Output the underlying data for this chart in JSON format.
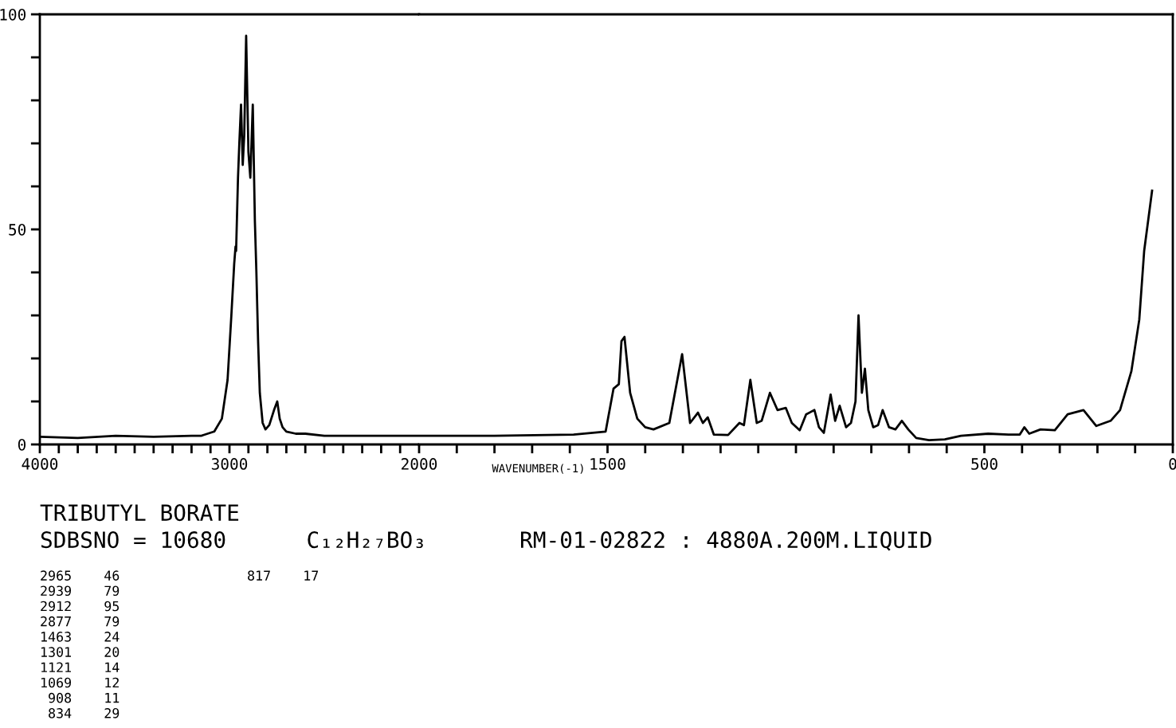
{
  "chart_data": [
    {
      "type": "line",
      "title": "TRIBUTYL BORATE",
      "subtitle": "SDBSNO = 10680      C₁₂H₂₇BO₃       RM-01-02822 : 4880A.200M.LIQUID",
      "series": [
        {
          "color": "#000000",
          "x": [
            4000,
            3800,
            3600,
            3400,
            3200,
            3150,
            3080,
            3040,
            3010,
            2990,
            2975,
            2968,
            2965,
            2955,
            2948,
            2939,
            2930,
            2922,
            2912,
            2900,
            2890,
            2877,
            2866,
            2858,
            2849,
            2840,
            2825,
            2810,
            2790,
            2765,
            2748,
            2735,
            2720,
            2700,
            2650,
            2600,
            2500,
            2300,
            2100,
            2000
          ],
          "values": [
            1.8,
            1.5,
            2,
            1.8,
            2,
            2,
            3,
            6,
            15,
            30,
            42,
            46,
            45,
            62,
            70,
            79,
            65,
            72,
            95,
            68,
            62,
            79,
            52,
            40,
            24,
            12,
            5,
            3.5,
            4.5,
            8,
            10,
            6,
            4,
            3,
            2.5,
            2.5,
            2,
            2,
            2,
            2
          ]
        }
      ],
      "xlim": [
        4000,
        2000
      ],
      "xticks": [
        4000,
        {
          "value": 3900,
          "label": null
        },
        {
          "value": 3800,
          "label": null
        },
        {
          "value": 3700,
          "label": null
        },
        {
          "value": 3600,
          "label": null
        },
        {
          "value": 3500,
          "label": null
        },
        {
          "value": 3400,
          "label": null
        },
        {
          "value": 3300,
          "label": null
        },
        {
          "value": 3200,
          "label": null
        },
        {
          "value": 3100,
          "label": null
        },
        3000,
        {
          "value": 2900,
          "label": null
        },
        {
          "value": 2800,
          "label": null
        },
        {
          "value": 2700,
          "label": null
        },
        {
          "value": 2600,
          "label": null
        },
        {
          "value": 2500,
          "label": null
        },
        {
          "value": 2400,
          "label": null
        },
        {
          "value": 2300,
          "label": null
        },
        {
          "value": 2200,
          "label": null
        },
        {
          "value": 2100,
          "label": null
        }
      ],
      "ylim": [
        0,
        100
      ],
      "yticks": [
        0,
        {
          "value": 10,
          "label": null
        },
        {
          "value": 20,
          "label": null
        },
        {
          "value": 30,
          "label": null
        },
        {
          "value": 40,
          "label": null
        },
        50,
        {
          "value": 60,
          "label": null
        },
        {
          "value": 70,
          "label": null
        },
        {
          "value": 80,
          "label": null
        },
        {
          "value": 90,
          "label": null
        },
        100
      ],
      "annotations": [
        "2965    46",
        "2939    79",
        "2912    95",
        "2877    79",
        "1463    24",
        "1301    20",
        "1121    14",
        "1069    12",
        " 908    11",
        " 834    29",
        " 817    17"
      ]
    },
    {
      "type": "line",
      "xlabel": "WAVENUMBER(-1)",
      "series": [
        {
          "color": "#000000",
          "x": [
            2000,
            1800,
            1590,
            1505,
            1484,
            1470,
            1463,
            1455,
            1440,
            1421,
            1400,
            1378,
            1336,
            1302,
            1281,
            1260,
            1247,
            1234,
            1218,
            1180,
            1150,
            1138,
            1121,
            1104,
            1091,
            1069,
            1049,
            1027,
            1011,
            990,
            973,
            951,
            939,
            926,
            908,
            896,
            884,
            867,
            854,
            842,
            834,
            825,
            817,
            808,
            795,
            782,
            770,
            753,
            736,
            719,
            702,
            681,
            647,
            605,
            562,
            490,
            436,
            406,
            394,
            381,
            351,
            313,
            279,
            237,
            203,
            165,
            140,
            110,
            89,
            76,
            55
          ],
          "values": [
            2,
            2,
            2.3,
            3,
            13,
            14,
            24,
            25,
            12,
            6,
            4,
            3.5,
            5,
            21,
            5,
            7.4,
            5,
            6.3,
            2.3,
            2.2,
            5,
            4.5,
            15,
            5,
            5.5,
            12,
            8,
            8.5,
            5,
            3.3,
            7,
            8,
            4,
            2.7,
            11.6,
            5.5,
            9,
            4,
            5,
            10,
            30,
            12,
            17.6,
            8,
            4,
            4.5,
            8,
            4,
            3.5,
            5.5,
            3.5,
            1.5,
            1,
            1.2,
            2,
            2.5,
            2.3,
            2.3,
            4,
            2.5,
            3.5,
            3.3,
            7,
            8,
            4.3,
            5.5,
            8,
            17,
            29,
            45,
            59
          ]
        }
      ],
      "xlim": [
        2000,
        0
      ],
      "xticks": [
        2000,
        {
          "value": 1900,
          "label": null
        },
        {
          "value": 1800,
          "label": null
        },
        {
          "value": 1700,
          "label": null
        },
        {
          "value": 1600,
          "label": null
        },
        1500,
        {
          "value": 1400,
          "label": null
        },
        {
          "value": 1300,
          "label": null
        },
        {
          "value": 1200,
          "label": null
        },
        {
          "value": 1100,
          "label": null
        },
        {
          "value": 1000,
          "label": null
        },
        {
          "value": 900,
          "label": null
        },
        {
          "value": 800,
          "label": null
        },
        {
          "value": 700,
          "label": null
        },
        {
          "value": 600,
          "label": null
        },
        500,
        {
          "value": 400,
          "label": null
        },
        {
          "value": 300,
          "label": null
        },
        {
          "value": 200,
          "label": null
        },
        {
          "value": 100,
          "label": null
        },
        0
      ],
      "ylim": [
        0,
        100
      ],
      "tick_labels": "x"
    }
  ]
}
